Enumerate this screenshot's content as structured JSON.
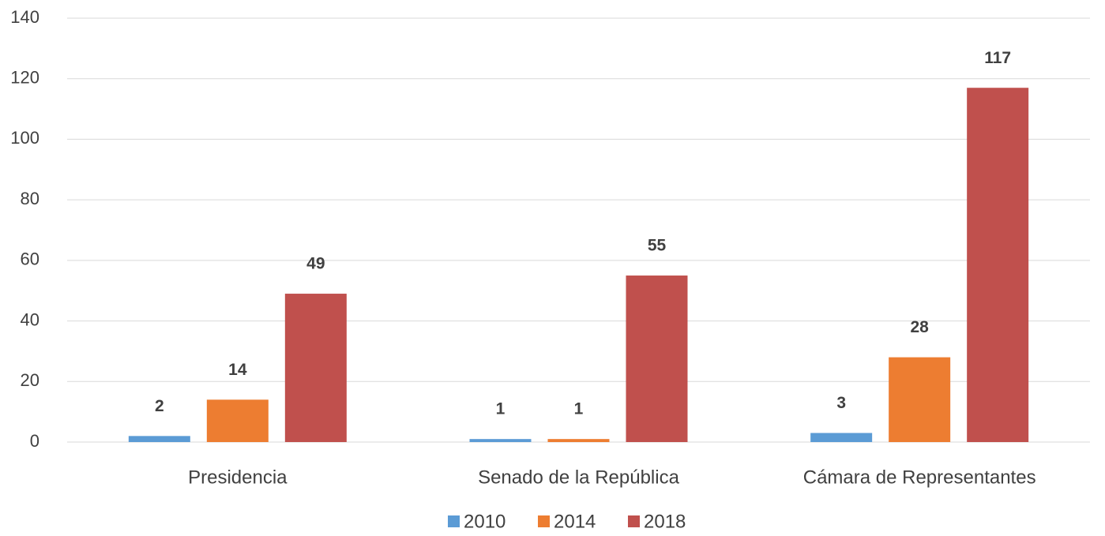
{
  "chart_data": {
    "type": "bar",
    "categories": [
      "Presidencia",
      "Senado de la República",
      "Cámara de Representantes"
    ],
    "series": [
      {
        "name": "2010",
        "color": "#5b9bd5",
        "values": [
          2,
          1,
          3
        ]
      },
      {
        "name": "2014",
        "color": "#ed7d31",
        "values": [
          14,
          1,
          28
        ]
      },
      {
        "name": "2018",
        "color": "#c0504d",
        "values": [
          49,
          55,
          117
        ]
      }
    ],
    "ylim": [
      0,
      140
    ],
    "yticks": [
      0,
      20,
      40,
      60,
      80,
      100,
      120,
      140
    ],
    "grid": true,
    "legend": "bottom"
  }
}
